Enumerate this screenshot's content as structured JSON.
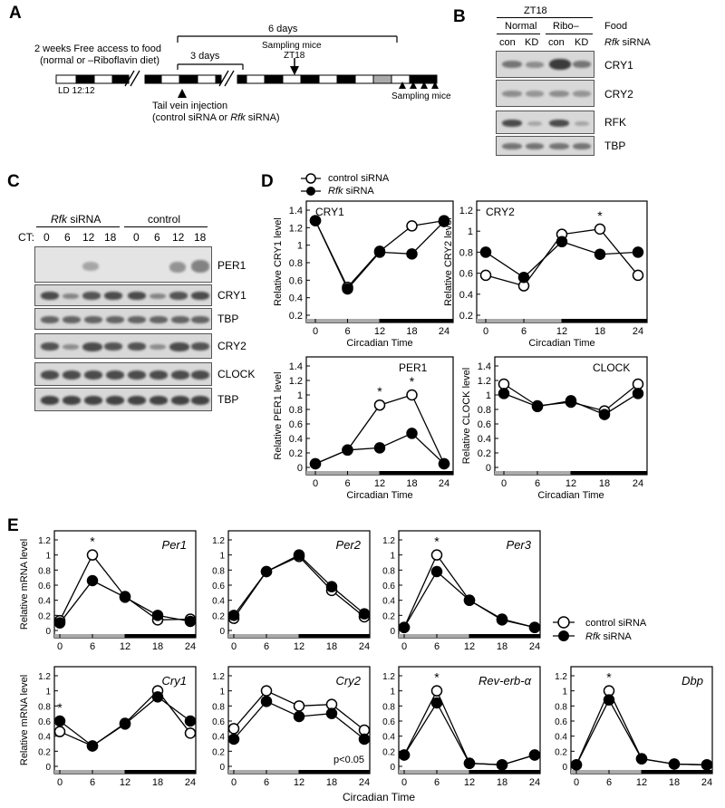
{
  "panels": {
    "A": "A",
    "B": "B",
    "C": "C",
    "D": "D",
    "E": "E"
  },
  "panelA": {
    "days6": "6 days",
    "days3": "3 days",
    "left1": "2 weeks  Free access to food",
    "left2": "(normal or –Riboflavin diet)",
    "sampling_top1": "Sampling mice",
    "sampling_top2": "ZT18",
    "ld": "LD 12:12",
    "tail1": "Tail vein injection",
    "tail2a": "(control siRNA or ",
    "tail2b": "Rfk",
    "tail2c": " siRNA)",
    "sampling_bottom": "Sampling mice"
  },
  "panelB": {
    "zt": "ZT18",
    "normal": "Normal",
    "ribo": "Ribo–",
    "food": "Food",
    "lanes": [
      "con",
      "KD",
      "con",
      "KD"
    ],
    "sirna_a": "Rfk",
    "sirna_b": " siRNA",
    "rows": [
      "CRY1",
      "CRY2",
      "RFK",
      "TBP"
    ]
  },
  "panelC": {
    "rfk_a": "Rfk",
    "rfk_b": " siRNA",
    "control": "control",
    "ct": "CT:",
    "times": [
      "0",
      "6",
      "12",
      "18",
      "0",
      "6",
      "12",
      "18"
    ],
    "rows": [
      "PER1",
      "CRY1",
      "TBP",
      "CRY2",
      "CLOCK",
      "TBP"
    ]
  },
  "panelD": {
    "legend": {
      "control": "control siRNA",
      "rfk_a": "Rfk",
      "rfk_b": " siRNA"
    },
    "xlabel": "Circadian Time"
  },
  "panelE": {
    "legend": {
      "control": "control siRNA",
      "rfk_a": "Rfk",
      "rfk_b": " siRNA"
    },
    "ylabel": "Relative mRNA level",
    "xlabel": "Circadian Time",
    "pnote": "p<0.05"
  },
  "chart_data": [
    {
      "id": "D-CRY1",
      "type": "line",
      "title": "CRY1",
      "ylabel": "Relative CRY1 level",
      "xlabel": "Circadian Time",
      "x": [
        0,
        6,
        12,
        18,
        24
      ],
      "ylim": [
        0.2,
        1.4
      ],
      "yticks": [
        0.2,
        0.4,
        0.6,
        0.8,
        1,
        1.2,
        1.4
      ],
      "series": [
        {
          "name": "control siRNA",
          "values": [
            1.28,
            0.52,
            0.93,
            1.22,
            1.28
          ]
        },
        {
          "name": "Rfk siRNA",
          "values": [
            1.28,
            0.5,
            0.92,
            0.9,
            1.27
          ]
        }
      ],
      "stars": []
    },
    {
      "id": "D-CRY2",
      "type": "line",
      "title": "CRY2",
      "ylabel": "Relative CRY2 level",
      "xlabel": "Circadian Time",
      "x": [
        0,
        6,
        12,
        18,
        24
      ],
      "ylim": [
        0.2,
        1.2
      ],
      "yticks": [
        0.2,
        0.4,
        0.6,
        0.8,
        1,
        1.2
      ],
      "series": [
        {
          "name": "control siRNA",
          "values": [
            0.58,
            0.48,
            0.97,
            1.02,
            0.58
          ]
        },
        {
          "name": "Rfk siRNA",
          "values": [
            0.8,
            0.56,
            0.9,
            0.78,
            0.8
          ]
        }
      ],
      "stars": [
        18
      ]
    },
    {
      "id": "D-PER1",
      "type": "line",
      "title": "PER1",
      "ylabel": "Relative PER1 level",
      "xlabel": "Circadian Time",
      "x": [
        0,
        6,
        12,
        18,
        24
      ],
      "ylim": [
        0,
        1.4
      ],
      "yticks": [
        0,
        0.2,
        0.4,
        0.6,
        0.8,
        1,
        1.2,
        1.4
      ],
      "series": [
        {
          "name": "control siRNA",
          "values": [
            0.05,
            0.24,
            0.86,
            1.0,
            0.05
          ]
        },
        {
          "name": "Rfk siRNA",
          "values": [
            0.05,
            0.24,
            0.27,
            0.47,
            0.05
          ]
        }
      ],
      "stars": [
        12,
        18
      ]
    },
    {
      "id": "D-CLOCK",
      "type": "line",
      "title": "CLOCK",
      "ylabel": "Relative CLOCK level",
      "xlabel": "Circadian Time",
      "x": [
        0,
        6,
        12,
        18,
        24
      ],
      "ylim": [
        0,
        1.4
      ],
      "yticks": [
        0,
        0.2,
        0.4,
        0.6,
        0.8,
        1,
        1.2,
        1.4
      ],
      "series": [
        {
          "name": "control siRNA",
          "values": [
            1.15,
            0.85,
            0.9,
            0.78,
            1.15
          ]
        },
        {
          "name": "Rfk siRNA",
          "values": [
            1.02,
            0.84,
            0.92,
            0.73,
            1.02
          ]
        }
      ],
      "stars": []
    },
    {
      "id": "E-Per1",
      "type": "line",
      "title": "Per1",
      "ylabel": "Relative mRNA level",
      "x": [
        0,
        6,
        12,
        18,
        24
      ],
      "ylim": [
        0,
        1.2
      ],
      "yticks": [
        0,
        0.2,
        0.4,
        0.6,
        0.8,
        1,
        1.2
      ],
      "series": [
        {
          "name": "control siRNA",
          "values": [
            0.13,
            1.0,
            0.45,
            0.14,
            0.15
          ]
        },
        {
          "name": "Rfk siRNA",
          "values": [
            0.1,
            0.66,
            0.44,
            0.2,
            0.12
          ]
        }
      ],
      "stars": [
        6
      ]
    },
    {
      "id": "E-Per2",
      "type": "line",
      "title": "Per2",
      "x": [
        0,
        6,
        12,
        18,
        24
      ],
      "ylim": [
        0,
        1.2
      ],
      "yticks": [
        0,
        0.2,
        0.4,
        0.6,
        0.8,
        1,
        1.2
      ],
      "series": [
        {
          "name": "control siRNA",
          "values": [
            0.16,
            0.78,
            0.98,
            0.53,
            0.18
          ]
        },
        {
          "name": "Rfk siRNA",
          "values": [
            0.2,
            0.78,
            1.0,
            0.58,
            0.22
          ]
        }
      ],
      "stars": []
    },
    {
      "id": "E-Per3",
      "type": "line",
      "title": "Per3",
      "x": [
        0,
        6,
        12,
        18,
        24
      ],
      "ylim": [
        0,
        1.2
      ],
      "yticks": [
        0,
        0.2,
        0.4,
        0.6,
        0.8,
        1,
        1.2
      ],
      "series": [
        {
          "name": "control siRNA",
          "values": [
            0.04,
            1.0,
            0.4,
            0.14,
            0.04
          ]
        },
        {
          "name": "Rfk siRNA",
          "values": [
            0.04,
            0.78,
            0.4,
            0.15,
            0.04
          ]
        }
      ],
      "stars": [
        6
      ]
    },
    {
      "id": "E-Cry1",
      "type": "line",
      "title": "Cry1",
      "ylabel": "Relative mRNA level",
      "x": [
        0,
        6,
        12,
        18,
        24
      ],
      "ylim": [
        0,
        1.2
      ],
      "yticks": [
        0,
        0.2,
        0.4,
        0.6,
        0.8,
        1,
        1.2
      ],
      "series": [
        {
          "name": "control siRNA",
          "values": [
            0.46,
            0.27,
            0.57,
            1.0,
            0.44
          ]
        },
        {
          "name": "Rfk siRNA",
          "values": [
            0.6,
            0.27,
            0.56,
            0.92,
            0.6
          ]
        }
      ],
      "stars": [
        0
      ]
    },
    {
      "id": "E-Cry2",
      "type": "line",
      "title": "Cry2",
      "x": [
        0,
        6,
        12,
        18,
        24
      ],
      "ylim": [
        0,
        1.2
      ],
      "yticks": [
        0,
        0.2,
        0.4,
        0.6,
        0.8,
        1,
        1.2
      ],
      "series": [
        {
          "name": "control siRNA",
          "values": [
            0.5,
            1.0,
            0.8,
            0.82,
            0.48
          ]
        },
        {
          "name": "Rfk siRNA",
          "values": [
            0.36,
            0.86,
            0.66,
            0.7,
            0.36
          ]
        }
      ],
      "stars": []
    },
    {
      "id": "E-Rev-erb-a",
      "type": "line",
      "title": "Rev-erb-α",
      "x": [
        0,
        6,
        12,
        18,
        24
      ],
      "ylim": [
        0,
        1.2
      ],
      "yticks": [
        0,
        0.2,
        0.4,
        0.6,
        0.8,
        1,
        1.2
      ],
      "series": [
        {
          "name": "control siRNA",
          "values": [
            0.15,
            1.0,
            0.04,
            0.02,
            0.15
          ]
        },
        {
          "name": "Rfk siRNA",
          "values": [
            0.15,
            0.84,
            0.04,
            0.02,
            0.15
          ]
        }
      ],
      "stars": [
        6
      ]
    },
    {
      "id": "E-Dbp",
      "type": "line",
      "title": "Dbp",
      "x": [
        0,
        6,
        12,
        18,
        24
      ],
      "ylim": [
        0,
        1.2
      ],
      "yticks": [
        0,
        0.2,
        0.4,
        0.6,
        0.8,
        1,
        1.2
      ],
      "series": [
        {
          "name": "control siRNA",
          "values": [
            0.02,
            1.0,
            0.1,
            0.03,
            0.02
          ]
        },
        {
          "name": "Rfk siRNA",
          "values": [
            0.02,
            0.88,
            0.1,
            0.03,
            0.02
          ]
        }
      ],
      "stars": [
        6
      ]
    }
  ]
}
